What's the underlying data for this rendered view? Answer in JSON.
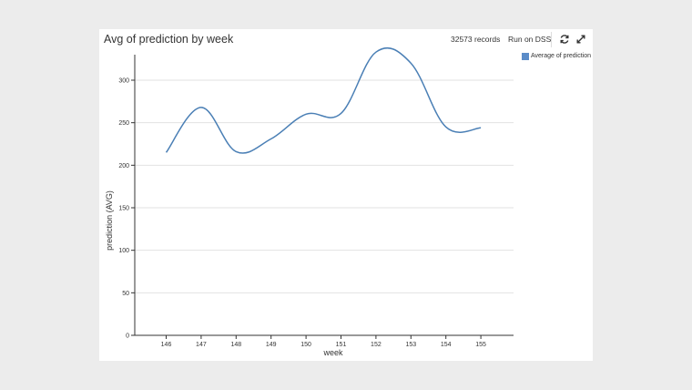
{
  "header": {
    "title": "Avg of prediction by week",
    "records": "32573 records",
    "run_label": "Run on DSS",
    "refresh_icon": "refresh-icon",
    "expand_icon": "expand-icon"
  },
  "legend": {
    "label": "Average of prediction",
    "color": "#5b8cc8"
  },
  "chart_data": {
    "type": "line",
    "title": "Avg of prediction by week",
    "xlabel": "week",
    "ylabel": "prediction (AVG)",
    "categories": [
      "146",
      "147",
      "148",
      "149",
      "150",
      "151",
      "152",
      "153",
      "154",
      "155"
    ],
    "series": [
      {
        "name": "Average of prediction",
        "color": "#4a7fb5",
        "values": [
          215,
          268,
          216,
          231,
          260,
          261,
          333,
          320,
          245,
          244
        ]
      }
    ],
    "ylim": [
      0,
      330
    ],
    "yticks": [
      0,
      50,
      100,
      150,
      200,
      250,
      300
    ],
    "grid": true,
    "legend_position": "top-right"
  }
}
